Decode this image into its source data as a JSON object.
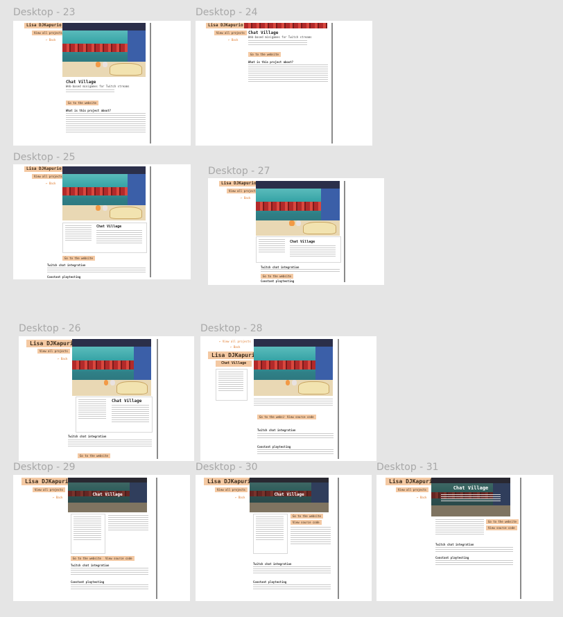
{
  "frames": {
    "f23": {
      "label": "Desktop - 23",
      "name": "Lisa DJKapurio",
      "view": "View all projects",
      "back": "← Back",
      "title": "Chat Village",
      "subtitle": "Web-based minigames for Twitch streams",
      "h1": "What is this project about?",
      "btn1": "Go to the website"
    },
    "f24": {
      "label": "Desktop - 24",
      "name": "Lisa DJKapurio",
      "view": "View all projects",
      "back": "← Back",
      "title": "Chat Village",
      "subtitle": "Web-based minigames for Twitch streams",
      "h1": "What is this project about?",
      "btn1": "Go to the website"
    },
    "f25": {
      "label": "Desktop - 25",
      "name": "Lisa DJKapurio",
      "view": "View all projects",
      "back": "← Back",
      "title": "Chat Village",
      "h1": "Twitch chat integration",
      "h2": "Constant playtesting",
      "btn1": "Go to the website"
    },
    "f27": {
      "label": "Desktop - 27",
      "name": "Lisa DJKapurio",
      "view": "View all projects",
      "back": "← Back",
      "title": "Chat Village",
      "h1": "Twitch chat integration",
      "h2": "Constant playtesting",
      "btn1": "Go to the website"
    },
    "f26": {
      "label": "Desktop - 26",
      "name": "Lisa DJKapurio",
      "view": "View all projects",
      "back": "← Back",
      "title": "Chat Village",
      "h1": "Twitch chat integration",
      "btn1": "Go to the website"
    },
    "f28": {
      "label": "Desktop - 28",
      "name": "Lisa DJKapurio",
      "view": "← View all projects",
      "back": "← Back",
      "title": "Chat Village",
      "h1": "Twitch chat integration",
      "h2": "Constant playtesting",
      "btn1": "Go to the website",
      "btn2": "View source code"
    },
    "f29": {
      "label": "Desktop - 29",
      "name": "Lisa DJKapurio",
      "view": "View all projects",
      "back": "← Back",
      "title": "Chat Village",
      "h1": "Twitch chat integration",
      "h2": "Constant playtesting",
      "btn1": "Go to the website",
      "btn2": "View source code"
    },
    "f30": {
      "label": "Desktop - 30",
      "name": "Lisa DJKapurio",
      "view": "View all projects",
      "back": "← Back",
      "title": "Chat Village",
      "h1": "Twitch chat integration",
      "h2": "Constant playtesting",
      "btn1": "Go to the website",
      "btn2": "View source code"
    },
    "f31": {
      "label": "Desktop - 31",
      "name": "Lisa DJKapurio",
      "view": "View all projects",
      "back": "← Back",
      "title": "Chat Village",
      "h1": "Twitch chat integration",
      "h2": "Constant playtesting",
      "btn1": "Go to the website",
      "btn2": "View source code"
    }
  },
  "colors": {
    "canvas": "#e5e5e5",
    "frame": "#ffffff",
    "accent": "#f4c9a3",
    "link": "#e07a2c",
    "label": "#a8a8a8"
  }
}
